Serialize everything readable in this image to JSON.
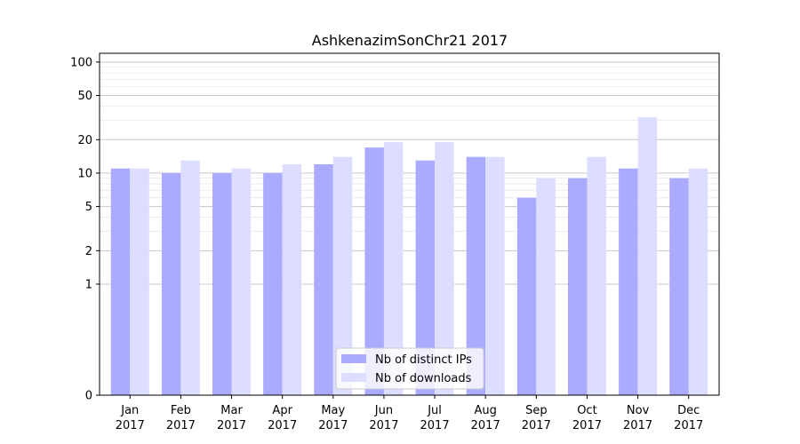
{
  "chart_data": {
    "type": "bar",
    "title": "AshkenazimSonChr21 2017",
    "xlabel": "",
    "ylabel": "",
    "yscale": "symlog",
    "ylim": [
      0,
      120
    ],
    "yticks": [
      0,
      1,
      2,
      5,
      10,
      20,
      50,
      100
    ],
    "grid": true,
    "legend_position": "bottom-center",
    "categories": [
      "Jan\n2017",
      "Feb\n2017",
      "Mar\n2017",
      "Apr\n2017",
      "May\n2017",
      "Jun\n2017",
      "Jul\n2017",
      "Aug\n2017",
      "Sep\n2017",
      "Oct\n2017",
      "Nov\n2017",
      "Dec\n2017"
    ],
    "series": [
      {
        "name": "Nb of distinct IPs",
        "color": "#aaaaff",
        "values": [
          11,
          10,
          10,
          10,
          12,
          17,
          13,
          14,
          6,
          9,
          11,
          9
        ]
      },
      {
        "name": "Nb of downloads",
        "color": "#ddddff",
        "values": [
          11,
          13,
          11,
          12,
          14,
          19,
          19,
          14,
          9,
          14,
          32,
          11
        ]
      }
    ]
  }
}
